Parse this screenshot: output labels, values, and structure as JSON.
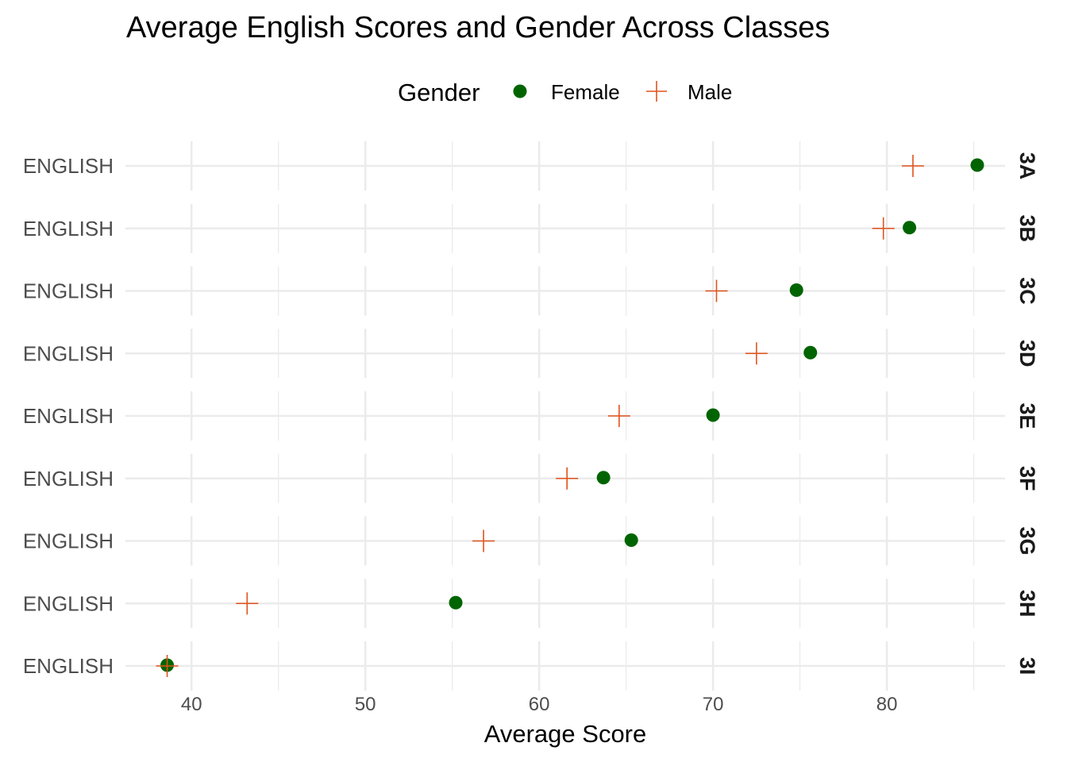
{
  "chart_data": {
    "type": "scatter",
    "title": "Average English Scores and Gender Across Classes",
    "xlabel": "Average Score",
    "ylabel": "",
    "xlim": [
      36.2,
      86.8
    ],
    "xticks": [
      40,
      50,
      60,
      70,
      80
    ],
    "legend": {
      "title": "Gender",
      "position": "top",
      "entries": [
        {
          "label": "Female",
          "shape": "circle",
          "color": "#006400"
        },
        {
          "label": "Male",
          "shape": "cross",
          "color": "#e0541c"
        }
      ]
    },
    "grid": true,
    "facets": [
      {
        "label": "3A",
        "ytick": "ENGLISH",
        "female": 85.2,
        "male": 81.5
      },
      {
        "label": "3B",
        "ytick": "ENGLISH",
        "female": 81.3,
        "male": 79.8
      },
      {
        "label": "3C",
        "ytick": "ENGLISH",
        "female": 74.8,
        "male": 70.2
      },
      {
        "label": "3D",
        "ytick": "ENGLISH",
        "female": 75.6,
        "male": 72.5
      },
      {
        "label": "3E",
        "ytick": "ENGLISH",
        "female": 70.0,
        "male": 64.6
      },
      {
        "label": "3F",
        "ytick": "ENGLISH",
        "female": 63.7,
        "male": 61.6
      },
      {
        "label": "3G",
        "ytick": "ENGLISH",
        "female": 65.3,
        "male": 56.8
      },
      {
        "label": "3H",
        "ytick": "ENGLISH",
        "female": 55.2,
        "male": 43.2
      },
      {
        "label": "3I",
        "ytick": "ENGLISH",
        "female": 38.6,
        "male": 38.6
      }
    ]
  }
}
